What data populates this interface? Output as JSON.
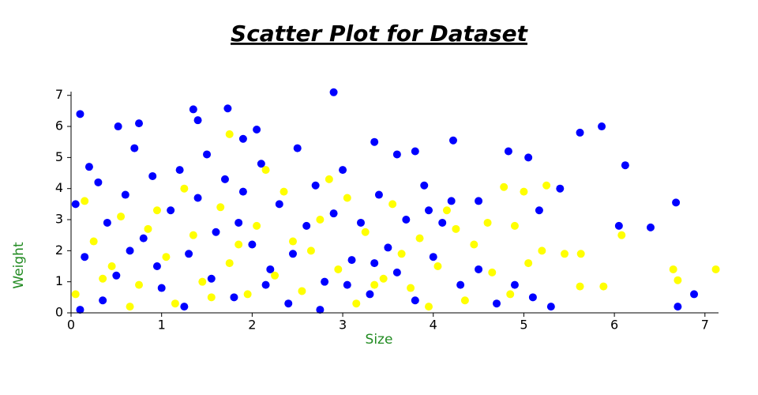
{
  "chart_data": {
    "type": "scatter",
    "title": "Scatter Plot for Dataset",
    "x_label": "Size",
    "y_label": "Weight",
    "xlim": [
      0,
      7.15
    ],
    "ylim": [
      0,
      7.12
    ],
    "xticks": [
      0,
      1,
      2,
      3,
      4,
      5,
      6,
      7
    ],
    "yticks": [
      0,
      1,
      2,
      3,
      4,
      5,
      6,
      7
    ],
    "series": [
      {
        "color": "#0000ff",
        "x": [
          0.1,
          1.35,
          1.73,
          2.9,
          0.75,
          0.52,
          1.4,
          2.05,
          1.9,
          3.35,
          4.22,
          4.83,
          5.05,
          5.62,
          5.86,
          6.12,
          6.4,
          6.68,
          6.05,
          6.88,
          6.7,
          5.4,
          5.17,
          4.5,
          3.6,
          3.8,
          0.05,
          0.2,
          0.3,
          0.4,
          0.5,
          0.6,
          0.7,
          0.8,
          0.9,
          1.0,
          1.1,
          1.2,
          1.3,
          1.4,
          1.5,
          1.6,
          1.7,
          1.8,
          1.9,
          2.0,
          2.1,
          2.2,
          2.3,
          2.4,
          2.5,
          2.6,
          2.7,
          2.8,
          2.9,
          3.0,
          3.1,
          3.2,
          3.3,
          3.4,
          3.5,
          3.6,
          3.7,
          3.8,
          3.9,
          4.0,
          4.1,
          4.3,
          4.5,
          4.7,
          4.9,
          5.1,
          0.15,
          0.35,
          0.65,
          0.95,
          1.25,
          1.55,
          1.85,
          2.15,
          2.45,
          2.75,
          3.05,
          3.35,
          0.1,
          4.2,
          3.95,
          5.3
        ],
        "y": [
          6.4,
          6.55,
          6.58,
          7.1,
          6.1,
          6.0,
          6.2,
          5.9,
          5.6,
          5.5,
          5.55,
          5.2,
          5.0,
          5.8,
          6.0,
          4.75,
          2.75,
          3.55,
          2.8,
          0.6,
          0.2,
          4.0,
          3.3,
          3.6,
          5.1,
          5.2,
          3.5,
          4.7,
          4.2,
          2.9,
          1.2,
          3.8,
          5.3,
          2.4,
          4.4,
          0.8,
          3.3,
          4.6,
          1.9,
          3.7,
          5.1,
          2.6,
          4.3,
          0.5,
          3.9,
          2.2,
          4.8,
          1.4,
          3.5,
          0.3,
          5.3,
          2.8,
          4.1,
          1.0,
          3.2,
          4.6,
          1.7,
          2.9,
          0.6,
          3.8,
          2.1,
          1.3,
          3.0,
          0.4,
          4.1,
          1.8,
          2.9,
          0.9,
          1.4,
          0.3,
          0.9,
          0.5,
          1.8,
          0.4,
          2.0,
          1.5,
          0.2,
          1.1,
          2.9,
          0.9,
          1.9,
          0.1,
          0.9,
          1.6,
          0.1,
          3.6,
          3.3,
          0.2
        ]
      },
      {
        "color": "#ffff00",
        "x": [
          7.12,
          6.65,
          6.7,
          6.08,
          5.88,
          5.63,
          5.62,
          5.45,
          5.25,
          5.0,
          4.78,
          1.75,
          5.2,
          4.9,
          4.6,
          0.05,
          0.25,
          0.45,
          0.55,
          0.75,
          0.85,
          1.05,
          1.15,
          1.35,
          1.45,
          1.65,
          1.75,
          1.95,
          2.05,
          2.25,
          2.35,
          2.55,
          2.65,
          2.85,
          2.95,
          3.15,
          3.25,
          3.45,
          3.55,
          3.75,
          3.85,
          4.05,
          4.15,
          4.35,
          4.45,
          4.65,
          4.85,
          5.05,
          0.15,
          0.35,
          0.65,
          0.95,
          1.25,
          1.55,
          1.85,
          2.15,
          2.45,
          2.75,
          3.05,
          3.35,
          3.65,
          3.95,
          4.25
        ],
        "y": [
          1.4,
          1.4,
          1.05,
          2.5,
          0.85,
          1.9,
          0.85,
          1.9,
          4.1,
          3.9,
          4.05,
          5.75,
          2.0,
          2.8,
          2.9,
          0.6,
          2.3,
          1.5,
          3.1,
          0.9,
          2.7,
          1.8,
          0.3,
          2.5,
          1.0,
          3.4,
          1.6,
          0.6,
          2.8,
          1.2,
          3.9,
          0.7,
          2.0,
          4.3,
          1.4,
          0.3,
          2.6,
          1.1,
          3.5,
          0.8,
          2.4,
          1.5,
          3.3,
          0.4,
          2.2,
          1.3,
          0.6,
          1.6,
          3.6,
          1.1,
          0.2,
          3.3,
          4.0,
          0.5,
          2.2,
          4.6,
          2.3,
          3.0,
          3.7,
          0.9,
          1.9,
          0.2,
          2.7
        ]
      }
    ]
  }
}
